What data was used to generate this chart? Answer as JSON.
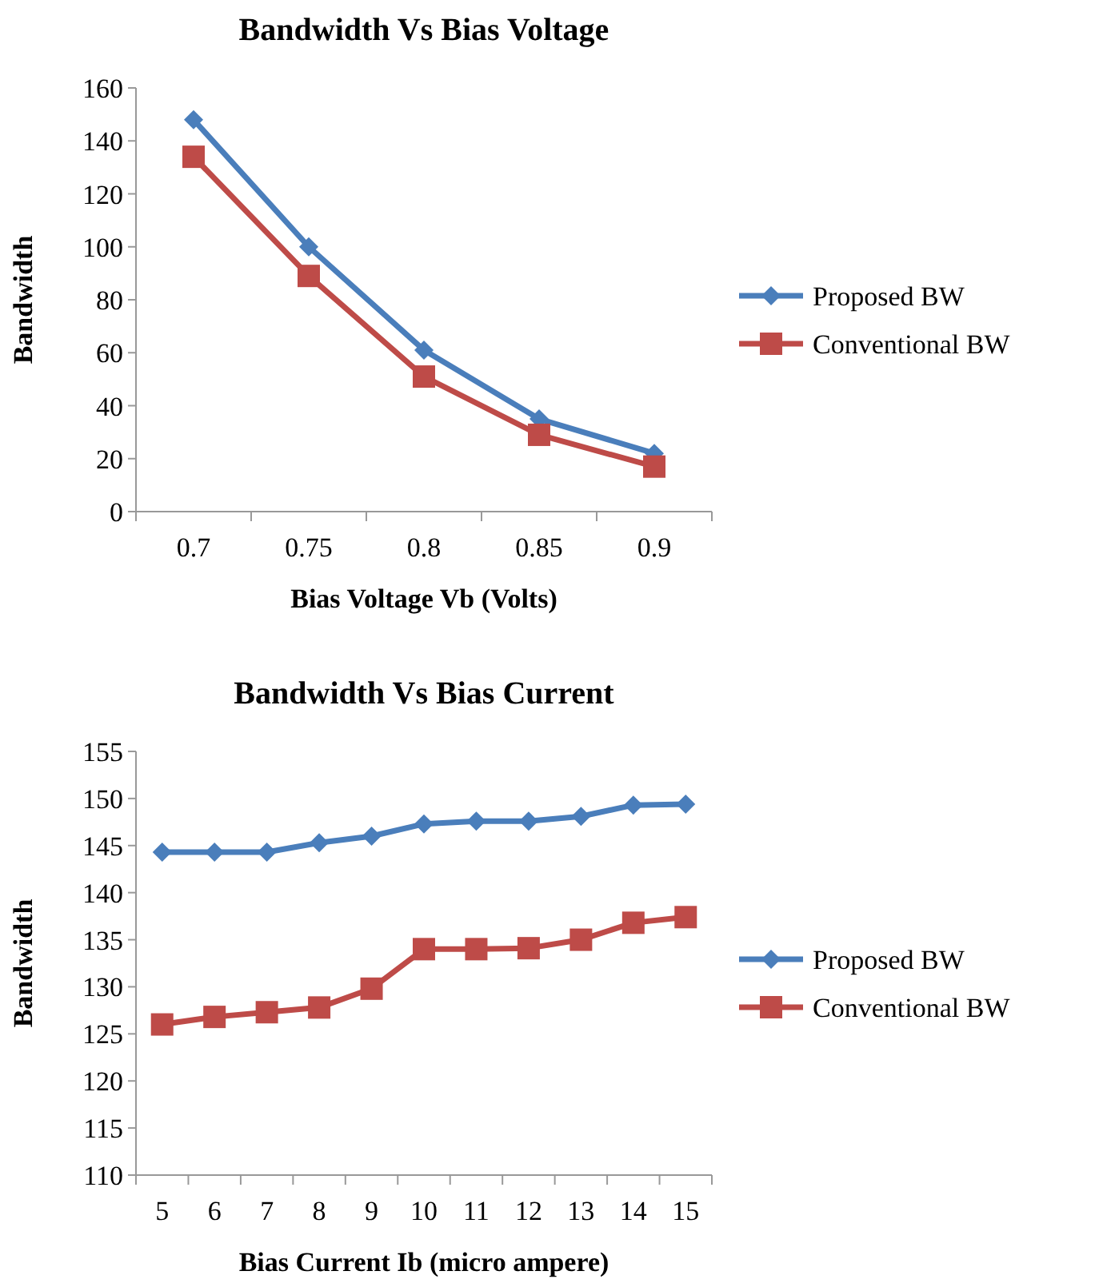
{
  "chart_data": [
    {
      "type": "line",
      "title": "Bandwidth Vs Bias Voltage",
      "xlabel": "Bias Voltage Vb (Volts)",
      "ylabel": "Bandwidth",
      "categories": [
        "0.7",
        "0.75",
        "0.8",
        "0.85",
        "0.9"
      ],
      "series": [
        {
          "name": "Proposed BW",
          "color": "#4a7ebb",
          "marker": "diamond",
          "values": [
            148,
            100,
            61,
            35,
            22
          ]
        },
        {
          "name": "Conventional BW",
          "color": "#be4b48",
          "marker": "square",
          "values": [
            134,
            89,
            51,
            29,
            17
          ]
        }
      ],
      "ylim": [
        0,
        160
      ],
      "yticks": [
        0,
        20,
        40,
        60,
        80,
        100,
        120,
        140,
        160
      ],
      "legend": "right"
    },
    {
      "type": "line",
      "title": "Bandwidth Vs Bias Current",
      "xlabel": "Bias Current Ib (micro ampere)",
      "ylabel": "Bandwidth",
      "categories": [
        "5",
        "6",
        "7",
        "8",
        "9",
        "10",
        "11",
        "12",
        "13",
        "14",
        "15"
      ],
      "series": [
        {
          "name": "Proposed BW",
          "color": "#4a7ebb",
          "marker": "diamond",
          "values": [
            144.3,
            144.3,
            144.3,
            145.3,
            146,
            147.3,
            147.6,
            147.6,
            148.1,
            149.3,
            149.4
          ]
        },
        {
          "name": "Conventional BW",
          "color": "#be4b48",
          "marker": "square",
          "values": [
            126,
            126.8,
            127.3,
            127.8,
            129.8,
            134,
            134,
            134.1,
            135,
            136.8,
            137.4
          ]
        }
      ],
      "ylim": [
        110,
        155
      ],
      "yticks": [
        110,
        115,
        120,
        125,
        130,
        135,
        140,
        145,
        150,
        155
      ],
      "legend": "right"
    }
  ]
}
